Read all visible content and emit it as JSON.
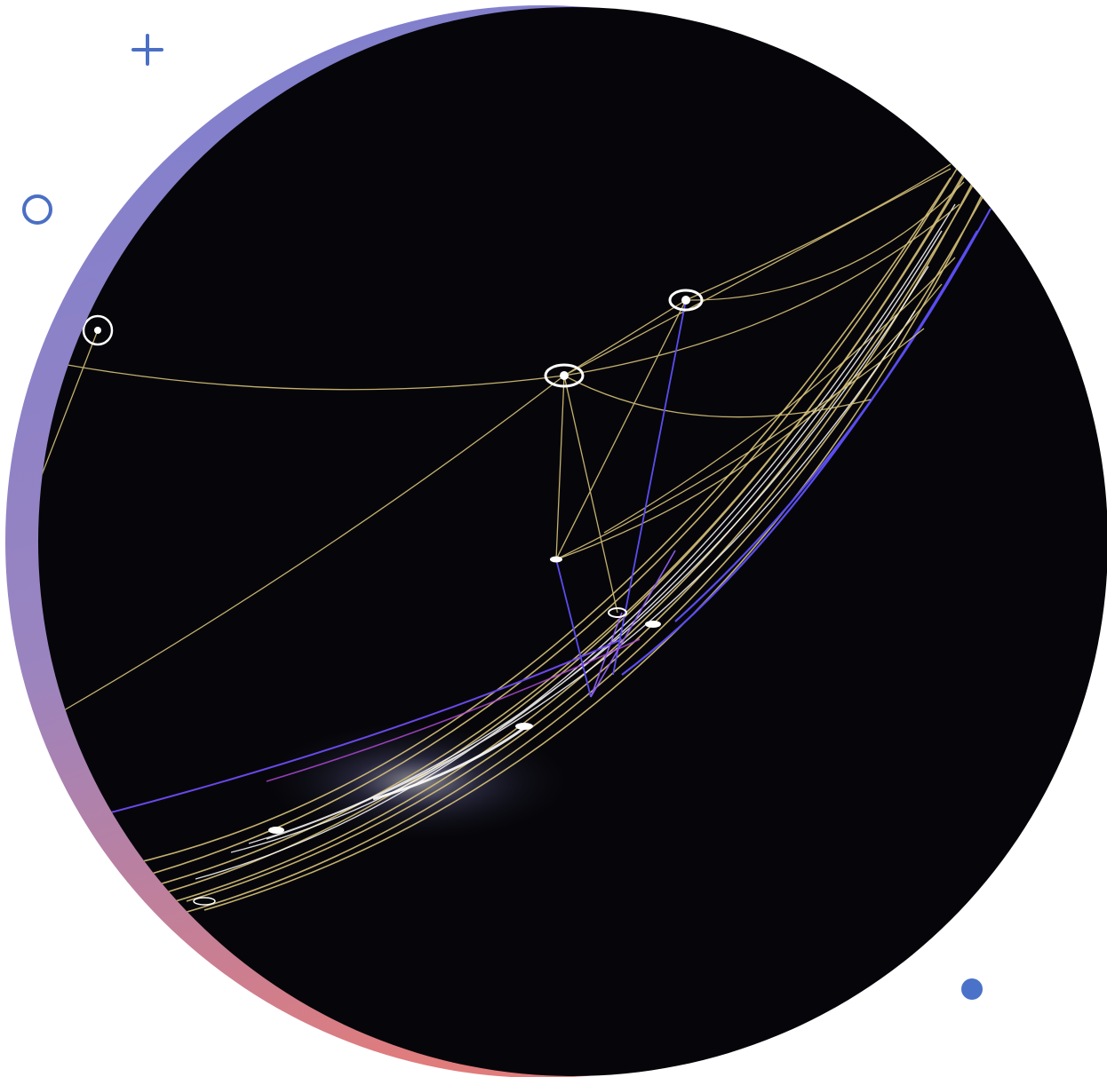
{
  "image": {
    "description_name": "network-globe-illustration",
    "colors": {
      "background": "#ffffff",
      "globe_fill": "#06060a",
      "ring_gradient_top": "#7b7fd0",
      "ring_gradient_bottom": "#e07c7c",
      "arc_gold": "#d9c47a",
      "arc_blue": "#5a4df0",
      "arc_white": "#ffffff",
      "decoration_blue": "#4a6fc4"
    },
    "decorations": [
      "plus-icon",
      "ring-icon",
      "dot-icon"
    ]
  }
}
